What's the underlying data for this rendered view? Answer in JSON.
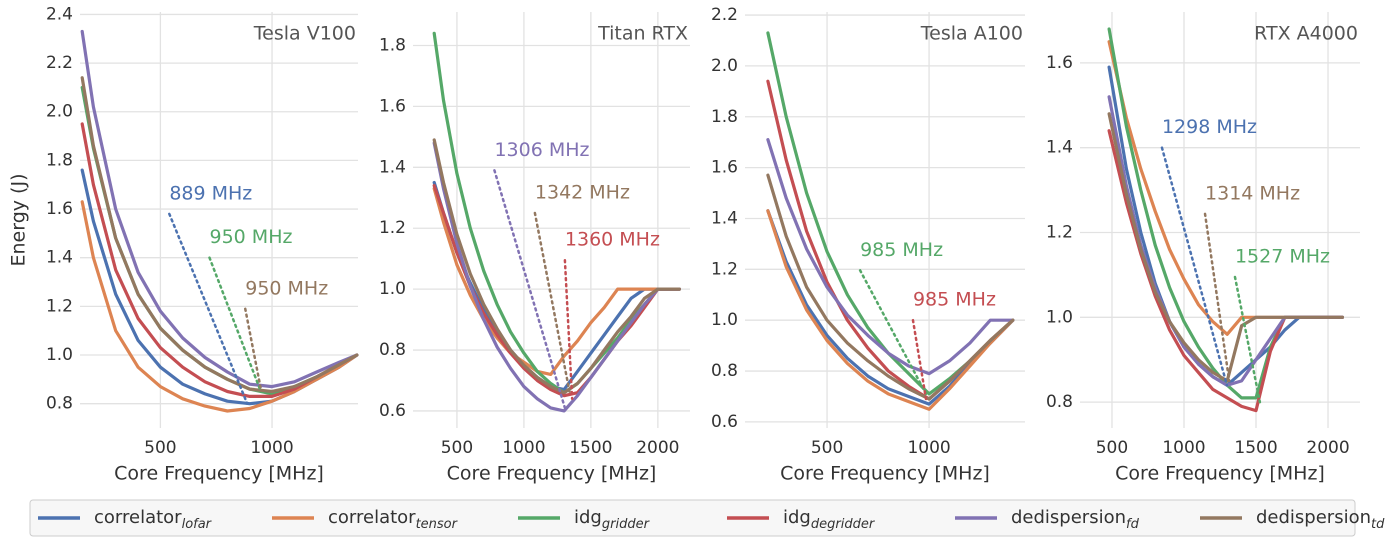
{
  "legend": [
    {
      "name": "correlator",
      "sub": "lofar",
      "color": "#4c72b0"
    },
    {
      "name": "correlator",
      "sub": "tensor",
      "color": "#dd8452"
    },
    {
      "name": "idg",
      "sub": "gridder",
      "color": "#55a868"
    },
    {
      "name": "idg",
      "sub": "degridder",
      "color": "#c44e52"
    },
    {
      "name": "dedispersion",
      "sub": "fd",
      "color": "#8172b3"
    },
    {
      "name": "dedispersion",
      "sub": "td",
      "color": "#937860"
    }
  ],
  "chart_data": [
    {
      "type": "line",
      "title": "Tesla V100",
      "xlabel": "Core Frequency [MHz]",
      "ylabel": "Energy (J)",
      "grid": true,
      "xlim": [
        140,
        1385
      ],
      "xticks": [
        500,
        1000
      ],
      "ylim": [
        0.7,
        2.41
      ],
      "yticks": [
        0.8,
        {
          "value": 1,
          "label": "1.0"
        },
        1.2,
        1.4,
        1.6,
        1.8,
        {
          "value": 2,
          "label": "2.0"
        },
        2.2,
        2.4
      ],
      "x": [
        150,
        200,
        300,
        400,
        500,
        600,
        700,
        800,
        900,
        1000,
        1100,
        1200,
        1300,
        1380
      ],
      "series": [
        {
          "values": [
            1.76,
            1.55,
            1.25,
            1.06,
            0.95,
            0.88,
            0.84,
            0.81,
            0.8,
            0.81,
            0.85,
            0.9,
            0.95,
            1.0
          ]
        },
        {
          "values": [
            1.63,
            1.4,
            1.1,
            0.95,
            0.87,
            0.82,
            0.79,
            0.77,
            0.78,
            0.81,
            0.85,
            0.9,
            0.95,
            1.0
          ]
        },
        {
          "values": [
            2.1,
            1.85,
            1.48,
            1.25,
            1.11,
            1.02,
            0.95,
            0.9,
            0.86,
            0.84,
            0.87,
            0.91,
            0.96,
            1.0
          ]
        },
        {
          "values": [
            1.95,
            1.7,
            1.35,
            1.15,
            1.03,
            0.95,
            0.89,
            0.85,
            0.83,
            0.83,
            0.86,
            0.91,
            0.96,
            1.0
          ]
        },
        {
          "values": [
            2.33,
            2.02,
            1.6,
            1.34,
            1.18,
            1.07,
            0.99,
            0.93,
            0.88,
            0.87,
            0.89,
            0.93,
            0.97,
            1.0
          ]
        },
        {
          "values": [
            2.14,
            1.86,
            1.48,
            1.25,
            1.11,
            1.02,
            0.95,
            0.9,
            0.86,
            0.85,
            0.87,
            0.91,
            0.96,
            1.0
          ]
        }
      ],
      "annotations": [
        {
          "text": "889 MHz",
          "color": "#4c72b0",
          "x": 889,
          "y": 0.8,
          "xytext": [
            540,
            1.58
          ]
        },
        {
          "text": "950 MHz",
          "color": "#55a868",
          "x": 950,
          "y": 0.85,
          "xytext": [
            720,
            1.4
          ]
        },
        {
          "text": "950 MHz",
          "color": "#937860",
          "x": 950,
          "y": 0.86,
          "xytext": [
            880,
            1.19
          ]
        }
      ]
    },
    {
      "type": "line",
      "title": "Titan RTX",
      "xlabel": "Core Frequency [MHz]",
      "grid": true,
      "xlim": [
        172,
        2240
      ],
      "xticks": [
        500,
        1000,
        1500,
        2000
      ],
      "ylim": [
        0.544,
        1.91
      ],
      "yticks": [
        0.6,
        0.8,
        {
          "value": 1,
          "label": "1.0"
        },
        1.2,
        1.4,
        1.6,
        1.8
      ],
      "x": [
        330,
        400,
        500,
        600,
        700,
        800,
        900,
        1000,
        1100,
        1200,
        1300,
        1400,
        1500,
        1600,
        1700,
        1800,
        1900,
        2000,
        2160
      ],
      "series": [
        {
          "values": [
            1.35,
            1.25,
            1.12,
            1.02,
            0.93,
            0.86,
            0.8,
            0.75,
            0.71,
            0.68,
            0.67,
            0.73,
            0.79,
            0.85,
            0.91,
            0.97,
            1.0,
            1.0,
            1.0
          ]
        },
        {
          "values": [
            1.33,
            1.22,
            1.08,
            0.98,
            0.9,
            0.84,
            0.79,
            0.76,
            0.73,
            0.72,
            0.78,
            0.83,
            0.89,
            0.94,
            1.0,
            1.0,
            1.0,
            1.0,
            1.0
          ]
        },
        {
          "values": [
            1.84,
            1.62,
            1.38,
            1.2,
            1.06,
            0.95,
            0.86,
            0.79,
            0.73,
            0.69,
            0.66,
            0.69,
            0.74,
            0.79,
            0.84,
            0.9,
            0.95,
            1.0,
            1.0
          ]
        },
        {
          "values": [
            1.34,
            1.25,
            1.12,
            1.01,
            0.92,
            0.85,
            0.79,
            0.74,
            0.7,
            0.67,
            0.65,
            0.66,
            0.71,
            0.77,
            0.83,
            0.88,
            0.94,
            1.0,
            1.0
          ]
        },
        {
          "values": [
            1.48,
            1.33,
            1.15,
            1.01,
            0.9,
            0.81,
            0.74,
            0.68,
            0.64,
            0.61,
            0.6,
            0.65,
            0.71,
            0.77,
            0.83,
            0.89,
            0.95,
            1.0,
            1.0
          ]
        },
        {
          "values": [
            1.49,
            1.35,
            1.18,
            1.05,
            0.95,
            0.87,
            0.8,
            0.75,
            0.71,
            0.68,
            0.66,
            0.69,
            0.74,
            0.8,
            0.86,
            0.91,
            0.97,
            1.0,
            1.0
          ]
        }
      ],
      "annotations": [
        {
          "text": "1306 MHz",
          "color": "#8172b3",
          "x": 1306,
          "y": 0.61,
          "xytext": [
            780,
            1.39
          ]
        },
        {
          "text": "1342 MHz",
          "color": "#937860",
          "x": 1342,
          "y": 0.66,
          "xytext": [
            1082,
            1.25
          ]
        },
        {
          "text": "1360 MHz",
          "color": "#c44e52",
          "x": 1360,
          "y": 0.64,
          "xytext": [
            1306,
            1.095
          ]
        }
      ]
    },
    {
      "type": "line",
      "title": "Tesla A100",
      "xlabel": "Core Frequency [MHz]",
      "grid": true,
      "xlim": [
        98,
        1470
      ],
      "xticks": [
        500,
        1000
      ],
      "ylim": [
        0.576,
        2.212
      ],
      "yticks": [
        0.6,
        0.8,
        {
          "value": 1,
          "label": "1.0"
        },
        1.2,
        1.4,
        1.6,
        1.8,
        {
          "value": 2,
          "label": "2.0"
        },
        2.2
      ],
      "x": [
        210,
        300,
        400,
        500,
        600,
        700,
        800,
        900,
        1000,
        1100,
        1200,
        1300,
        1410
      ],
      "series": [
        {
          "values": [
            1.43,
            1.23,
            1.06,
            0.94,
            0.85,
            0.78,
            0.73,
            0.7,
            0.67,
            0.74,
            0.83,
            0.91,
            1.0
          ]
        },
        {
          "values": [
            1.43,
            1.21,
            1.04,
            0.92,
            0.83,
            0.76,
            0.71,
            0.68,
            0.65,
            0.73,
            0.82,
            0.91,
            1.0
          ]
        },
        {
          "values": [
            2.13,
            1.8,
            1.5,
            1.27,
            1.1,
            0.97,
            0.87,
            0.79,
            0.71,
            0.77,
            0.84,
            0.92,
            1.0
          ]
        },
        {
          "values": [
            1.94,
            1.63,
            1.35,
            1.15,
            1.0,
            0.89,
            0.8,
            0.74,
            0.69,
            0.76,
            0.84,
            0.92,
            1.0
          ]
        },
        {
          "values": [
            1.71,
            1.48,
            1.28,
            1.13,
            1.02,
            0.94,
            0.87,
            0.82,
            0.79,
            0.84,
            0.91,
            1.0,
            1.0
          ]
        },
        {
          "values": [
            1.57,
            1.33,
            1.13,
            1.0,
            0.91,
            0.84,
            0.78,
            0.73,
            0.69,
            0.76,
            0.84,
            0.92,
            1.0
          ]
        }
      ],
      "annotations": [
        {
          "text": "985 MHz",
          "color": "#55a868",
          "x": 985,
          "y": 0.71,
          "xytext": [
            662,
            1.196
          ]
        },
        {
          "text": "985 MHz",
          "color": "#c44e52",
          "x": 985,
          "y": 0.69,
          "xytext": [
            921,
            1.0
          ]
        }
      ]
    },
    {
      "type": "line",
      "title": "RTX A4000",
      "xlabel": "Core Frequency [MHz]",
      "grid": true,
      "xlim": [
        278,
        2222
      ],
      "xticks": [
        500,
        1000,
        1500,
        2000
      ],
      "ylim": [
        0.739,
        1.72
      ],
      "yticks": [
        0.8,
        {
          "value": 1,
          "label": "1.0"
        },
        1.2,
        1.4,
        1.6
      ],
      "x": [
        480,
        600,
        700,
        800,
        900,
        1000,
        1100,
        1200,
        1300,
        1400,
        1500,
        1600,
        1700,
        1800,
        1900,
        2100
      ],
      "series": [
        {
          "values": [
            1.59,
            1.35,
            1.2,
            1.08,
            0.99,
            0.93,
            0.89,
            0.86,
            0.84,
            0.87,
            0.9,
            0.93,
            0.97,
            1.0,
            1.0,
            1.0
          ]
        },
        {
          "values": [
            1.65,
            1.47,
            1.35,
            1.25,
            1.16,
            1.09,
            1.03,
            0.99,
            0.96,
            1.0,
            1.0,
            1.0,
            1.0,
            1.0,
            1.0,
            1.0
          ]
        },
        {
          "values": [
            1.68,
            1.45,
            1.3,
            1.17,
            1.07,
            0.99,
            0.93,
            0.88,
            0.84,
            0.81,
            0.81,
            0.93,
            1.0,
            1.0,
            1.0,
            1.0
          ]
        },
        {
          "values": [
            1.44,
            1.27,
            1.15,
            1.05,
            0.97,
            0.91,
            0.87,
            0.83,
            0.81,
            0.79,
            0.78,
            0.92,
            1.0,
            1.0,
            1.0,
            1.0
          ]
        },
        {
          "values": [
            1.52,
            1.31,
            1.17,
            1.07,
            0.99,
            0.93,
            0.89,
            0.86,
            0.84,
            0.85,
            0.9,
            0.95,
            1.0,
            1.0,
            1.0,
            1.0
          ]
        },
        {
          "values": [
            1.48,
            1.29,
            1.16,
            1.06,
            0.99,
            0.94,
            0.9,
            0.87,
            0.85,
            0.98,
            1.0,
            1.0,
            1.0,
            1.0,
            1.0,
            1.0
          ]
        }
      ],
      "annotations": [
        {
          "text": "1298 MHz",
          "color": "#4c72b0",
          "x": 1298,
          "y": 0.84,
          "xytext": [
            847,
            1.4
          ]
        },
        {
          "text": "1314 MHz",
          "color": "#937860",
          "x": 1314,
          "y": 0.85,
          "xytext": [
            1146,
            1.244
          ]
        },
        {
          "text": "1527 MHz",
          "color": "#55a868",
          "x": 1527,
          "y": 0.8,
          "xytext": [
            1354,
            1.095
          ]
        }
      ]
    }
  ]
}
